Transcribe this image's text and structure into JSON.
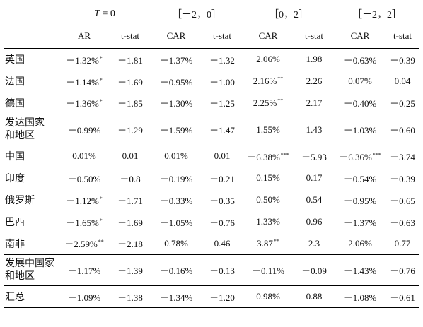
{
  "header": {
    "groups": [
      {
        "pre": "",
        "italic": "T",
        "post": " = 0"
      },
      {
        "pre": "［－2，0］",
        "italic": "",
        "post": ""
      },
      {
        "pre": "［0，2］",
        "italic": "",
        "post": ""
      },
      {
        "pre": "［－2，2］",
        "italic": "",
        "post": ""
      }
    ],
    "columns": [
      "AR",
      "t-stat",
      "CAR",
      "t-stat",
      "CAR",
      "t-stat",
      "CAR",
      "t-stat"
    ]
  },
  "sections": [
    {
      "rows": [
        {
          "label": [
            "英国"
          ],
          "cells": [
            [
              "－1.32%",
              "*"
            ],
            [
              "－1.81",
              ""
            ],
            [
              "－1.37%",
              ""
            ],
            [
              "－1.32",
              ""
            ],
            [
              "2.06%",
              ""
            ],
            [
              "1.98",
              ""
            ],
            [
              "－0.63%",
              ""
            ],
            [
              "－0.39",
              ""
            ]
          ]
        },
        {
          "label": [
            "法国"
          ],
          "cells": [
            [
              "－1.14%",
              "*"
            ],
            [
              "－1.69",
              ""
            ],
            [
              "－0.95%",
              ""
            ],
            [
              "－1.00",
              ""
            ],
            [
              "2.16%",
              "**"
            ],
            [
              "2.26",
              ""
            ],
            [
              "0.07%",
              ""
            ],
            [
              "0.04",
              ""
            ]
          ]
        },
        {
          "label": [
            "德国"
          ],
          "cells": [
            [
              "－1.36%",
              "*"
            ],
            [
              "－1.85",
              ""
            ],
            [
              "－1.30%",
              ""
            ],
            [
              "－1.25",
              ""
            ],
            [
              "2.25%",
              "**"
            ],
            [
              "2.17",
              ""
            ],
            [
              "－0.40%",
              ""
            ],
            [
              "－0.25",
              ""
            ]
          ]
        }
      ]
    },
    {
      "rows": [
        {
          "label": [
            "发达国家",
            "和地区"
          ],
          "cells": [
            [
              "－0.99%",
              ""
            ],
            [
              "－1.29",
              ""
            ],
            [
              "－1.59%",
              ""
            ],
            [
              "－1.47",
              ""
            ],
            [
              "1.55%",
              ""
            ],
            [
              "1.43",
              ""
            ],
            [
              "－1.03%",
              ""
            ],
            [
              "－0.60",
              ""
            ]
          ]
        }
      ]
    },
    {
      "rows": [
        {
          "label": [
            "中国"
          ],
          "cells": [
            [
              "0.01%",
              ""
            ],
            [
              "0.01",
              ""
            ],
            [
              "0.01%",
              ""
            ],
            [
              "0.01",
              ""
            ],
            [
              "－6.38%",
              "***"
            ],
            [
              "－5.93",
              ""
            ],
            [
              "－6.36%",
              "***"
            ],
            [
              "－3.74",
              ""
            ]
          ]
        },
        {
          "label": [
            "印度"
          ],
          "cells": [
            [
              "－0.50%",
              ""
            ],
            [
              "－0.8",
              ""
            ],
            [
              "－0.19%",
              ""
            ],
            [
              "－0.21",
              ""
            ],
            [
              "0.15%",
              ""
            ],
            [
              "0.17",
              ""
            ],
            [
              "－0.54%",
              ""
            ],
            [
              "－0.39",
              ""
            ]
          ]
        },
        {
          "label": [
            "俄罗斯"
          ],
          "cells": [
            [
              "－1.12%",
              "*"
            ],
            [
              "－1.71",
              ""
            ],
            [
              "－0.33%",
              ""
            ],
            [
              "－0.35",
              ""
            ],
            [
              "0.50%",
              ""
            ],
            [
              "0.54",
              ""
            ],
            [
              "－0.95%",
              ""
            ],
            [
              "－0.65",
              ""
            ]
          ]
        },
        {
          "label": [
            "巴西"
          ],
          "cells": [
            [
              "－1.65%",
              "*"
            ],
            [
              "－1.69",
              ""
            ],
            [
              "－1.05%",
              ""
            ],
            [
              "－0.76",
              ""
            ],
            [
              "1.33%",
              ""
            ],
            [
              "0.96",
              ""
            ],
            [
              "－1.37%",
              ""
            ],
            [
              "－0.63",
              ""
            ]
          ]
        },
        {
          "label": [
            "南非"
          ],
          "cells": [
            [
              "－2.59%",
              "**"
            ],
            [
              "－2.18",
              ""
            ],
            [
              "0.78%",
              ""
            ],
            [
              "0.46",
              ""
            ],
            [
              "3.87",
              "**"
            ],
            [
              "2.3",
              ""
            ],
            [
              "2.06%",
              ""
            ],
            [
              "0.77",
              ""
            ]
          ]
        }
      ]
    },
    {
      "rows": [
        {
          "label": [
            "发展中国家",
            "和地区"
          ],
          "cells": [
            [
              "－1.17%",
              ""
            ],
            [
              "－1.39",
              ""
            ],
            [
              "－0.16%",
              ""
            ],
            [
              "－0.13",
              ""
            ],
            [
              "－0.11%",
              ""
            ],
            [
              "－0.09",
              ""
            ],
            [
              "－1.43%",
              ""
            ],
            [
              "－0.76",
              ""
            ]
          ]
        }
      ]
    },
    {
      "rows": [
        {
          "label": [
            "汇总"
          ],
          "cells": [
            [
              "－1.09%",
              ""
            ],
            [
              "－1.38",
              ""
            ],
            [
              "－1.34%",
              ""
            ],
            [
              "－1.20",
              ""
            ],
            [
              "0.98%",
              ""
            ],
            [
              "0.88",
              ""
            ],
            [
              "－1.08%",
              ""
            ],
            [
              "－0.61",
              ""
            ]
          ]
        }
      ]
    }
  ]
}
